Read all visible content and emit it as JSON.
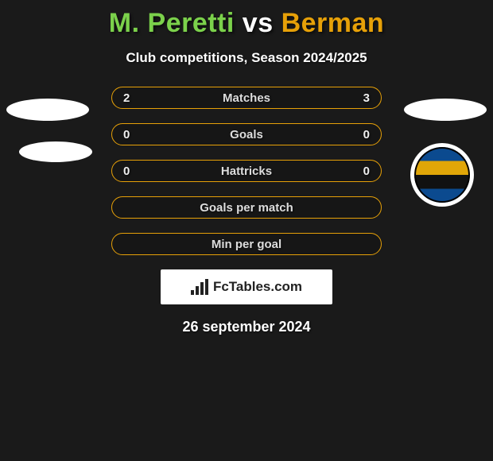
{
  "title": {
    "player_a": "M. Peretti",
    "vs": "vs",
    "player_b": "Berman",
    "color_a": "#7bd14b",
    "color_vs": "#ffffff",
    "color_b": "#e6a008"
  },
  "subtitle": "Club competitions, Season 2024/2025",
  "colors": {
    "accent_a": "#7bd14b",
    "accent_b": "#e6a008",
    "bar_border": "#e6a008",
    "bar_bg": "#161616",
    "background": "#1a1a1a"
  },
  "bars": [
    {
      "label": "Matches",
      "left": "2",
      "right": "3",
      "fill_left_pct": 40,
      "fill_right_pct": 60,
      "show_vals": true
    },
    {
      "label": "Goals",
      "left": "0",
      "right": "0",
      "fill_left_pct": 0,
      "fill_right_pct": 0,
      "show_vals": true
    },
    {
      "label": "Hattricks",
      "left": "0",
      "right": "0",
      "fill_left_pct": 0,
      "fill_right_pct": 0,
      "show_vals": true
    },
    {
      "label": "Goals per match",
      "left": "",
      "right": "",
      "fill_left_pct": 0,
      "fill_right_pct": 0,
      "show_vals": false
    },
    {
      "label": "Min per goal",
      "left": "",
      "right": "",
      "fill_left_pct": 0,
      "fill_right_pct": 0,
      "show_vals": false
    }
  ],
  "brand": "FcTables.com",
  "date": "26 september 2024"
}
